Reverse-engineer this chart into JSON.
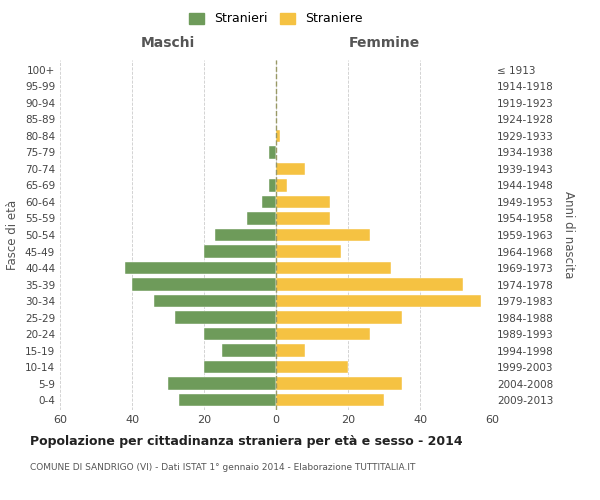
{
  "age_groups": [
    "0-4",
    "5-9",
    "10-14",
    "15-19",
    "20-24",
    "25-29",
    "30-34",
    "35-39",
    "40-44",
    "45-49",
    "50-54",
    "55-59",
    "60-64",
    "65-69",
    "70-74",
    "75-79",
    "80-84",
    "85-89",
    "90-94",
    "95-99",
    "100+"
  ],
  "birth_years": [
    "2009-2013",
    "2004-2008",
    "1999-2003",
    "1994-1998",
    "1989-1993",
    "1984-1988",
    "1979-1983",
    "1974-1978",
    "1969-1973",
    "1964-1968",
    "1959-1963",
    "1954-1958",
    "1949-1953",
    "1944-1948",
    "1939-1943",
    "1934-1938",
    "1929-1933",
    "1924-1928",
    "1919-1923",
    "1914-1918",
    "≤ 1913"
  ],
  "maschi": [
    27,
    30,
    20,
    15,
    20,
    28,
    34,
    40,
    42,
    20,
    17,
    8,
    4,
    2,
    0,
    2,
    0,
    0,
    0,
    0,
    0
  ],
  "femmine": [
    30,
    35,
    20,
    8,
    26,
    35,
    57,
    52,
    32,
    18,
    26,
    15,
    15,
    3,
    8,
    0,
    1,
    0,
    0,
    0,
    0
  ],
  "color_maschi": "#6e9b5a",
  "color_femmine": "#f5c242",
  "title": "Popolazione per cittadinanza straniera per età e sesso - 2014",
  "subtitle": "COMUNE DI SANDRIGO (VI) - Dati ISTAT 1° gennaio 2014 - Elaborazione TUTTITALIA.IT",
  "xlabel_left": "Maschi",
  "xlabel_right": "Femmine",
  "ylabel_left": "Fasce di età",
  "ylabel_right": "Anni di nascita",
  "legend_stranieri": "Stranieri",
  "legend_straniere": "Straniere",
  "xlim": 60,
  "background_color": "#ffffff",
  "grid_color": "#cccccc"
}
